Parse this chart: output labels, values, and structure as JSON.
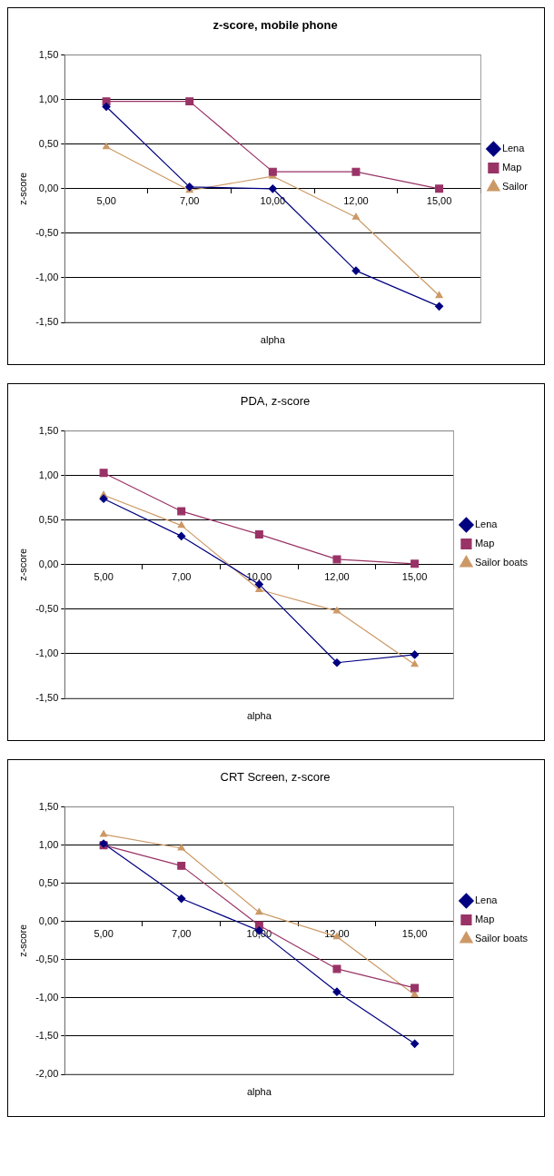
{
  "chart_data": [
    {
      "type": "line",
      "title": "z-score, mobile phone",
      "xlabel": "alpha",
      "ylabel": "z-score",
      "categories": [
        "5,00",
        "7,00",
        "10,00",
        "12,00",
        "15,00"
      ],
      "ylim": [
        -1.5,
        1.5
      ],
      "yticks": [
        {
          "value": -1.5,
          "label": "-1,50"
        },
        {
          "value": -1,
          "label": "-1,00"
        },
        {
          "value": -0.5,
          "label": "-0,50"
        },
        {
          "value": 0,
          "label": "0,00"
        },
        {
          "value": 0.5,
          "label": "0,50"
        },
        {
          "value": 1,
          "label": "1,00"
        },
        {
          "value": 1.5,
          "label": "1,50"
        }
      ],
      "grid": "y",
      "legend": "right",
      "series": [
        {
          "name": "Lena",
          "color": "#000080",
          "marker": "diamond",
          "values": [
            0.92,
            0.02,
            0.0,
            -0.92,
            -1.32
          ]
        },
        {
          "name": "Map",
          "color": "#993366",
          "marker": "square",
          "values": [
            0.98,
            0.98,
            0.19,
            0.19,
            0.0
          ]
        },
        {
          "name": "Sailor",
          "color": "#cc9966",
          "marker": "triangle",
          "values": [
            0.47,
            -0.02,
            0.14,
            -0.32,
            -1.2
          ]
        }
      ]
    },
    {
      "type": "line",
      "title": "PDA, z-score",
      "xlabel": "alpha",
      "ylabel": "z-score",
      "categories": [
        "5,00",
        "7,00",
        "10,00",
        "12,00",
        "15,00"
      ],
      "ylim": [
        -1.5,
        1.5
      ],
      "yticks": [
        {
          "value": -1.5,
          "label": "-1,50"
        },
        {
          "value": -1,
          "label": "-1,00"
        },
        {
          "value": -0.5,
          "label": "-0,50"
        },
        {
          "value": 0,
          "label": "0,00"
        },
        {
          "value": 0.5,
          "label": "0,50"
        },
        {
          "value": 1,
          "label": "1,00"
        },
        {
          "value": 1.5,
          "label": "1,50"
        }
      ],
      "grid": "y",
      "legend": "right",
      "series": [
        {
          "name": "Lena",
          "color": "#000080",
          "marker": "diamond",
          "values": [
            0.74,
            0.32,
            -0.22,
            -1.1,
            -1.01
          ]
        },
        {
          "name": "Map",
          "color": "#993366",
          "marker": "square",
          "values": [
            1.03,
            0.6,
            0.34,
            0.06,
            0.01
          ]
        },
        {
          "name": "Sailor boats",
          "color": "#cc9966",
          "marker": "triangle",
          "values": [
            0.78,
            0.44,
            -0.28,
            -0.52,
            -1.12
          ]
        }
      ]
    },
    {
      "type": "line",
      "title": "CRT Screen, z-score",
      "xlabel": "alpha",
      "ylabel": "z-score",
      "categories": [
        "5,00",
        "7,00",
        "10,00",
        "12,00",
        "15,00"
      ],
      "ylim": [
        -2,
        1.5
      ],
      "yticks": [
        {
          "value": -2,
          "label": "-2,00"
        },
        {
          "value": -1.5,
          "label": "-1,50"
        },
        {
          "value": -1,
          "label": "-1,00"
        },
        {
          "value": -0.5,
          "label": "-0,50"
        },
        {
          "value": 0,
          "label": "0,00"
        },
        {
          "value": 0.5,
          "label": "0,50"
        },
        {
          "value": 1,
          "label": "1,00"
        },
        {
          "value": 1.5,
          "label": "1,50"
        }
      ],
      "grid": "y",
      "legend": "right",
      "series": [
        {
          "name": "Lena",
          "color": "#000080",
          "marker": "diamond",
          "values": [
            1.02,
            0.3,
            -0.12,
            -0.92,
            -1.6
          ]
        },
        {
          "name": "Map",
          "color": "#993366",
          "marker": "square",
          "values": [
            1.0,
            0.73,
            -0.05,
            -0.62,
            -0.87
          ]
        },
        {
          "name": "Sailor boats",
          "color": "#cc9966",
          "marker": "triangle",
          "values": [
            1.14,
            0.96,
            0.12,
            -0.2,
            -0.96
          ]
        }
      ]
    }
  ]
}
